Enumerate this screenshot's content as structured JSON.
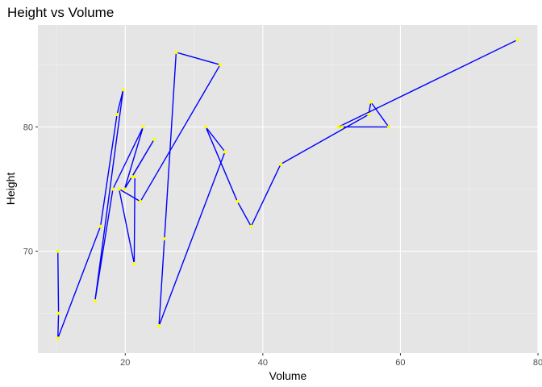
{
  "chart_data": {
    "type": "line",
    "title": "Height vs Volume",
    "xlabel": "Volume",
    "ylabel": "Height",
    "xlim": [
      7.3,
      80
    ],
    "ylim": [
      61.8,
      88.2
    ],
    "x_ticks": [
      20,
      40,
      60,
      80
    ],
    "y_ticks": [
      70,
      80
    ],
    "x_minor_ticks": [
      10,
      30,
      50,
      70
    ],
    "y_minor_ticks": [
      65,
      75,
      85
    ],
    "grid": true,
    "line_color": "#0000ff",
    "point_color": "#ffff00",
    "panel_color": "#e5e5e5",
    "points": [
      {
        "x": 10.2,
        "y": 70
      },
      {
        "x": 10.3,
        "y": 65
      },
      {
        "x": 10.2,
        "y": 63
      },
      {
        "x": 16.4,
        "y": 72
      },
      {
        "x": 18.8,
        "y": 81
      },
      {
        "x": 19.7,
        "y": 83
      },
      {
        "x": 15.6,
        "y": 66
      },
      {
        "x": 18.2,
        "y": 75
      },
      {
        "x": 22.6,
        "y": 80
      },
      {
        "x": 19.9,
        "y": 75
      },
      {
        "x": 24.2,
        "y": 79
      },
      {
        "x": 21.0,
        "y": 76
      },
      {
        "x": 21.4,
        "y": 76
      },
      {
        "x": 21.3,
        "y": 69
      },
      {
        "x": 19.1,
        "y": 75
      },
      {
        "x": 22.2,
        "y": 74
      },
      {
        "x": 33.8,
        "y": 85
      },
      {
        "x": 27.4,
        "y": 86
      },
      {
        "x": 25.7,
        "y": 71
      },
      {
        "x": 24.9,
        "y": 64
      },
      {
        "x": 34.5,
        "y": 78
      },
      {
        "x": 31.7,
        "y": 80
      },
      {
        "x": 36.3,
        "y": 74
      },
      {
        "x": 38.3,
        "y": 72
      },
      {
        "x": 42.6,
        "y": 77
      },
      {
        "x": 55.4,
        "y": 81
      },
      {
        "x": 55.7,
        "y": 82
      },
      {
        "x": 58.3,
        "y": 80
      },
      {
        "x": 51.5,
        "y": 80
      },
      {
        "x": 51.0,
        "y": 80
      },
      {
        "x": 77.0,
        "y": 87
      }
    ]
  }
}
